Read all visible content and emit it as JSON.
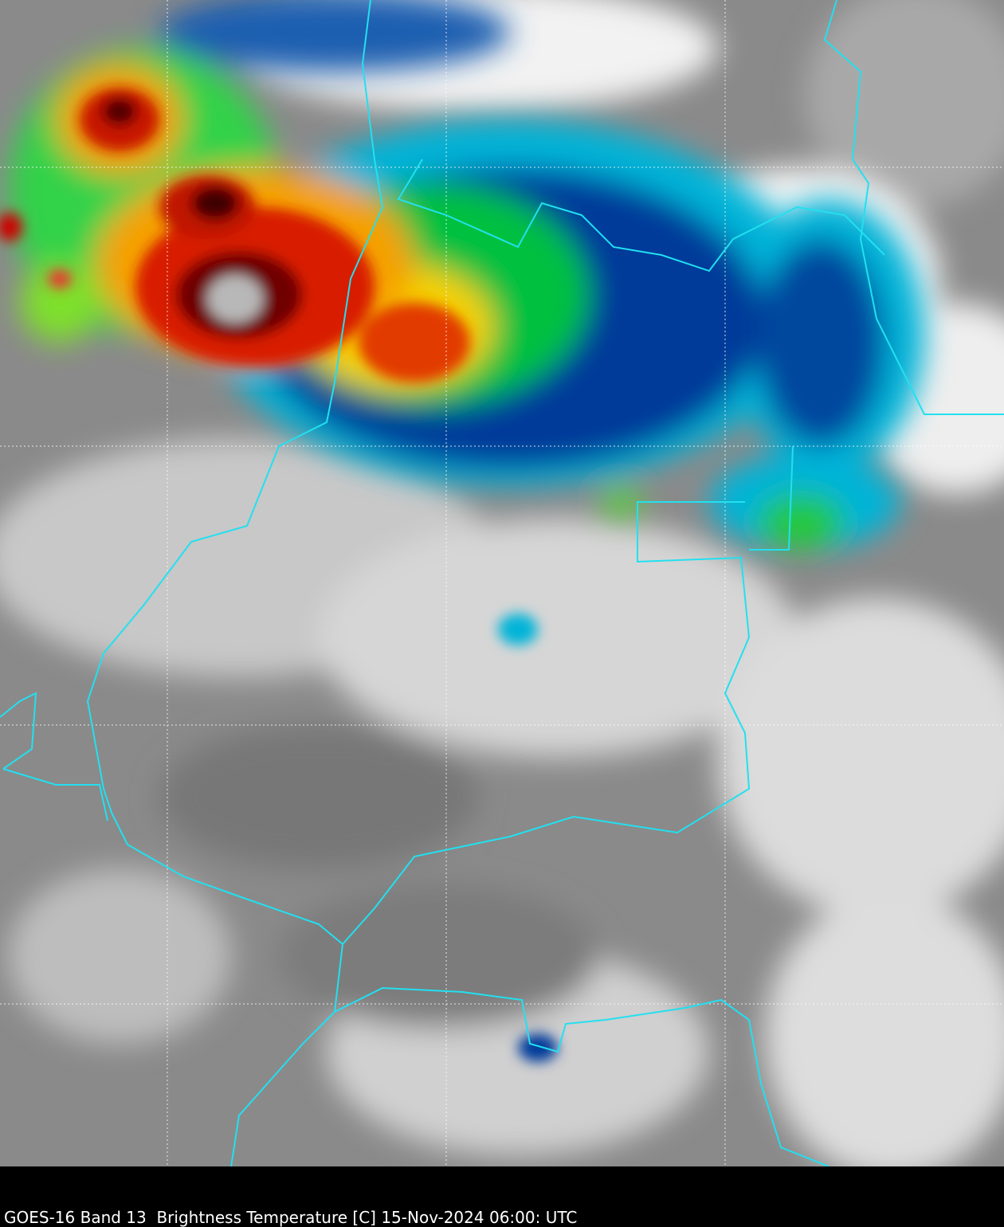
{
  "caption": "GOES-16 Band 13  Brightness Temperature [C] 15-Nov-2024 06:00: UTC"
}
